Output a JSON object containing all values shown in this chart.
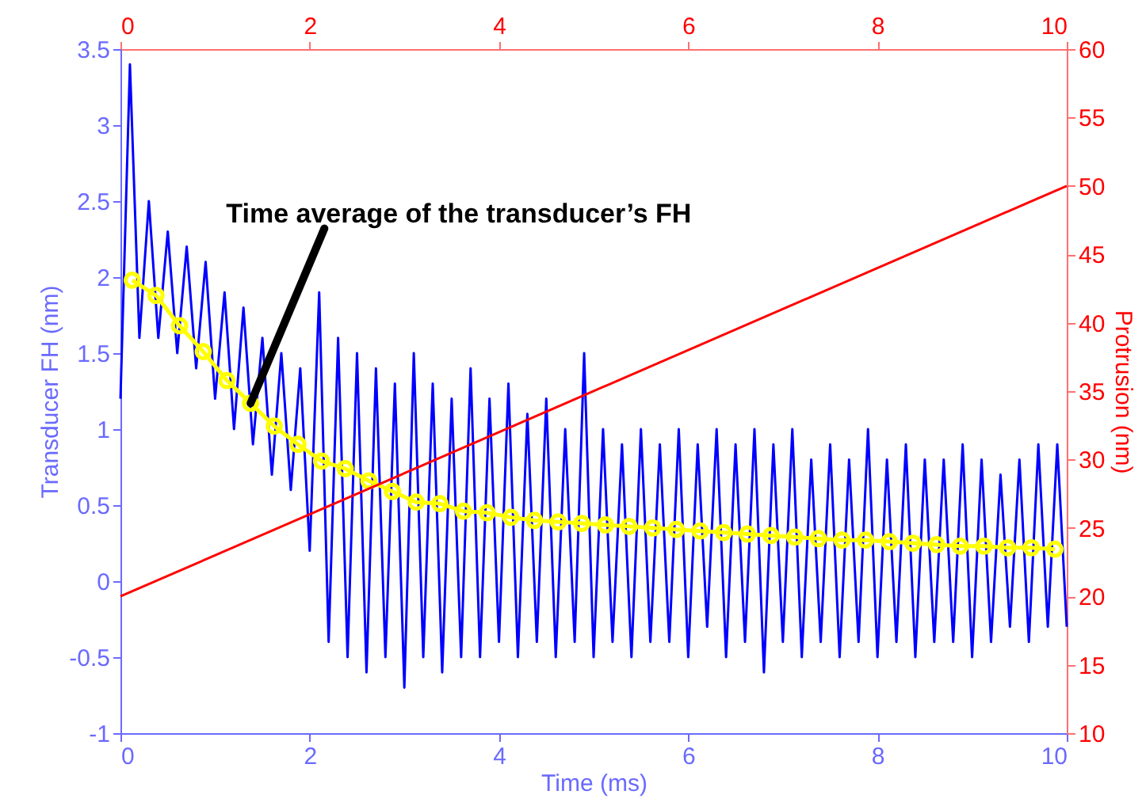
{
  "chart_data": {
    "type": "line",
    "xlabel": "Time (ms)",
    "ylabel": "Transducer FH (nm)",
    "y2label": "Protrusion (nm)",
    "xlim": [
      0,
      10
    ],
    "xticks": [
      0,
      2,
      4,
      6,
      8,
      10
    ],
    "x2lim": [
      0,
      10
    ],
    "x2ticks": [
      0,
      2,
      4,
      6,
      8,
      10
    ],
    "ylim": [
      -1,
      3.5
    ],
    "yticks": [
      -1,
      -0.5,
      0,
      0.5,
      1,
      1.5,
      2,
      2.5,
      3,
      3.5
    ],
    "y2lim": [
      10,
      60
    ],
    "y2ticks": [
      10,
      15,
      20,
      25,
      30,
      35,
      40,
      45,
      50,
      55,
      60
    ],
    "grid": false,
    "annotations": [
      {
        "text": "Time average of the transducer’s FH",
        "x": 1.375,
        "y": 1.17
      }
    ],
    "series": [
      {
        "color": "#0000ff",
        "marker": "none",
        "x": [
          0,
          0.1,
          0.2,
          0.3,
          0.4,
          0.5,
          0.6,
          0.7,
          0.8,
          0.9,
          1.0,
          1.1,
          1.2,
          1.3,
          1.4,
          1.5,
          1.6,
          1.7,
          1.8,
          1.9,
          2.0,
          2.1,
          2.2,
          2.3,
          2.4,
          2.5,
          2.6,
          2.7,
          2.8,
          2.9,
          3.0,
          3.1,
          3.2,
          3.3,
          3.4,
          3.5,
          3.6,
          3.7,
          3.8,
          3.9,
          4.0,
          4.1,
          4.2,
          4.3,
          4.4,
          4.5,
          4.6,
          4.7,
          4.8,
          4.9,
          5.0,
          5.1,
          5.2,
          5.3,
          5.4,
          5.5,
          5.6,
          5.7,
          5.8,
          5.9,
          6.0,
          6.1,
          6.2,
          6.3,
          6.4,
          6.5,
          6.6,
          6.7,
          6.8,
          6.9,
          7.0,
          7.1,
          7.2,
          7.3,
          7.4,
          7.5,
          7.6,
          7.7,
          7.8,
          7.9,
          8.0,
          8.1,
          8.2,
          8.3,
          8.4,
          8.5,
          8.6,
          8.7,
          8.8,
          8.9,
          9.0,
          9.1,
          9.2,
          9.3,
          9.4,
          9.5,
          9.6,
          9.7,
          9.8,
          9.9,
          10.0
        ],
        "values": [
          1.2,
          3.4,
          1.6,
          2.5,
          1.6,
          2.3,
          1.5,
          2.2,
          1.4,
          2.1,
          1.2,
          1.9,
          1.0,
          1.8,
          0.9,
          1.6,
          0.7,
          1.5,
          0.6,
          1.4,
          0.2,
          1.9,
          -0.4,
          1.6,
          -0.5,
          1.5,
          -0.6,
          1.4,
          -0.5,
          1.3,
          -0.7,
          1.5,
          -0.5,
          1.3,
          -0.6,
          1.2,
          -0.5,
          1.4,
          -0.5,
          1.2,
          -0.4,
          1.3,
          -0.5,
          1.1,
          -0.4,
          1.2,
          -0.5,
          1.0,
          -0.4,
          1.5,
          -0.5,
          1.0,
          -0.4,
          0.9,
          -0.5,
          1.0,
          -0.4,
          0.9,
          -0.4,
          1.0,
          -0.5,
          0.9,
          -0.3,
          1.0,
          -0.5,
          0.9,
          -0.4,
          1.0,
          -0.6,
          0.9,
          -0.4,
          1.0,
          -0.5,
          0.8,
          -0.4,
          0.9,
          -0.5,
          0.8,
          -0.4,
          1.0,
          -0.5,
          0.8,
          -0.4,
          0.9,
          -0.5,
          0.8,
          -0.4,
          0.8,
          -0.4,
          0.9,
          -0.5,
          0.8,
          -0.4,
          0.7,
          -0.3,
          0.8,
          -0.4,
          0.9,
          -0.3,
          0.9,
          -0.3
        ]
      },
      {
        "color": "#ffff00",
        "marker": "circle",
        "x": [
          0.125,
          0.375,
          0.625,
          0.875,
          1.125,
          1.375,
          1.625,
          1.875,
          2.125,
          2.375,
          2.625,
          2.875,
          3.125,
          3.375,
          3.625,
          3.875,
          4.125,
          4.375,
          4.625,
          4.875,
          5.125,
          5.375,
          5.625,
          5.875,
          6.125,
          6.375,
          6.625,
          6.875,
          7.125,
          7.375,
          7.625,
          7.875,
          8.125,
          8.375,
          8.625,
          8.875,
          9.125,
          9.375,
          9.625,
          9.875
        ],
        "values": [
          1.98,
          1.88,
          1.68,
          1.51,
          1.32,
          1.17,
          1.02,
          0.9,
          0.79,
          0.74,
          0.66,
          0.59,
          0.52,
          0.51,
          0.46,
          0.45,
          0.42,
          0.4,
          0.39,
          0.38,
          0.37,
          0.36,
          0.35,
          0.34,
          0.33,
          0.32,
          0.31,
          0.3,
          0.29,
          0.28,
          0.27,
          0.27,
          0.26,
          0.25,
          0.24,
          0.23,
          0.23,
          0.22,
          0.22,
          0.21
        ]
      },
      {
        "color": "#ff0000",
        "axis": "y2",
        "marker": "none",
        "x": [
          0,
          10
        ],
        "values": [
          20,
          50
        ]
      }
    ]
  }
}
